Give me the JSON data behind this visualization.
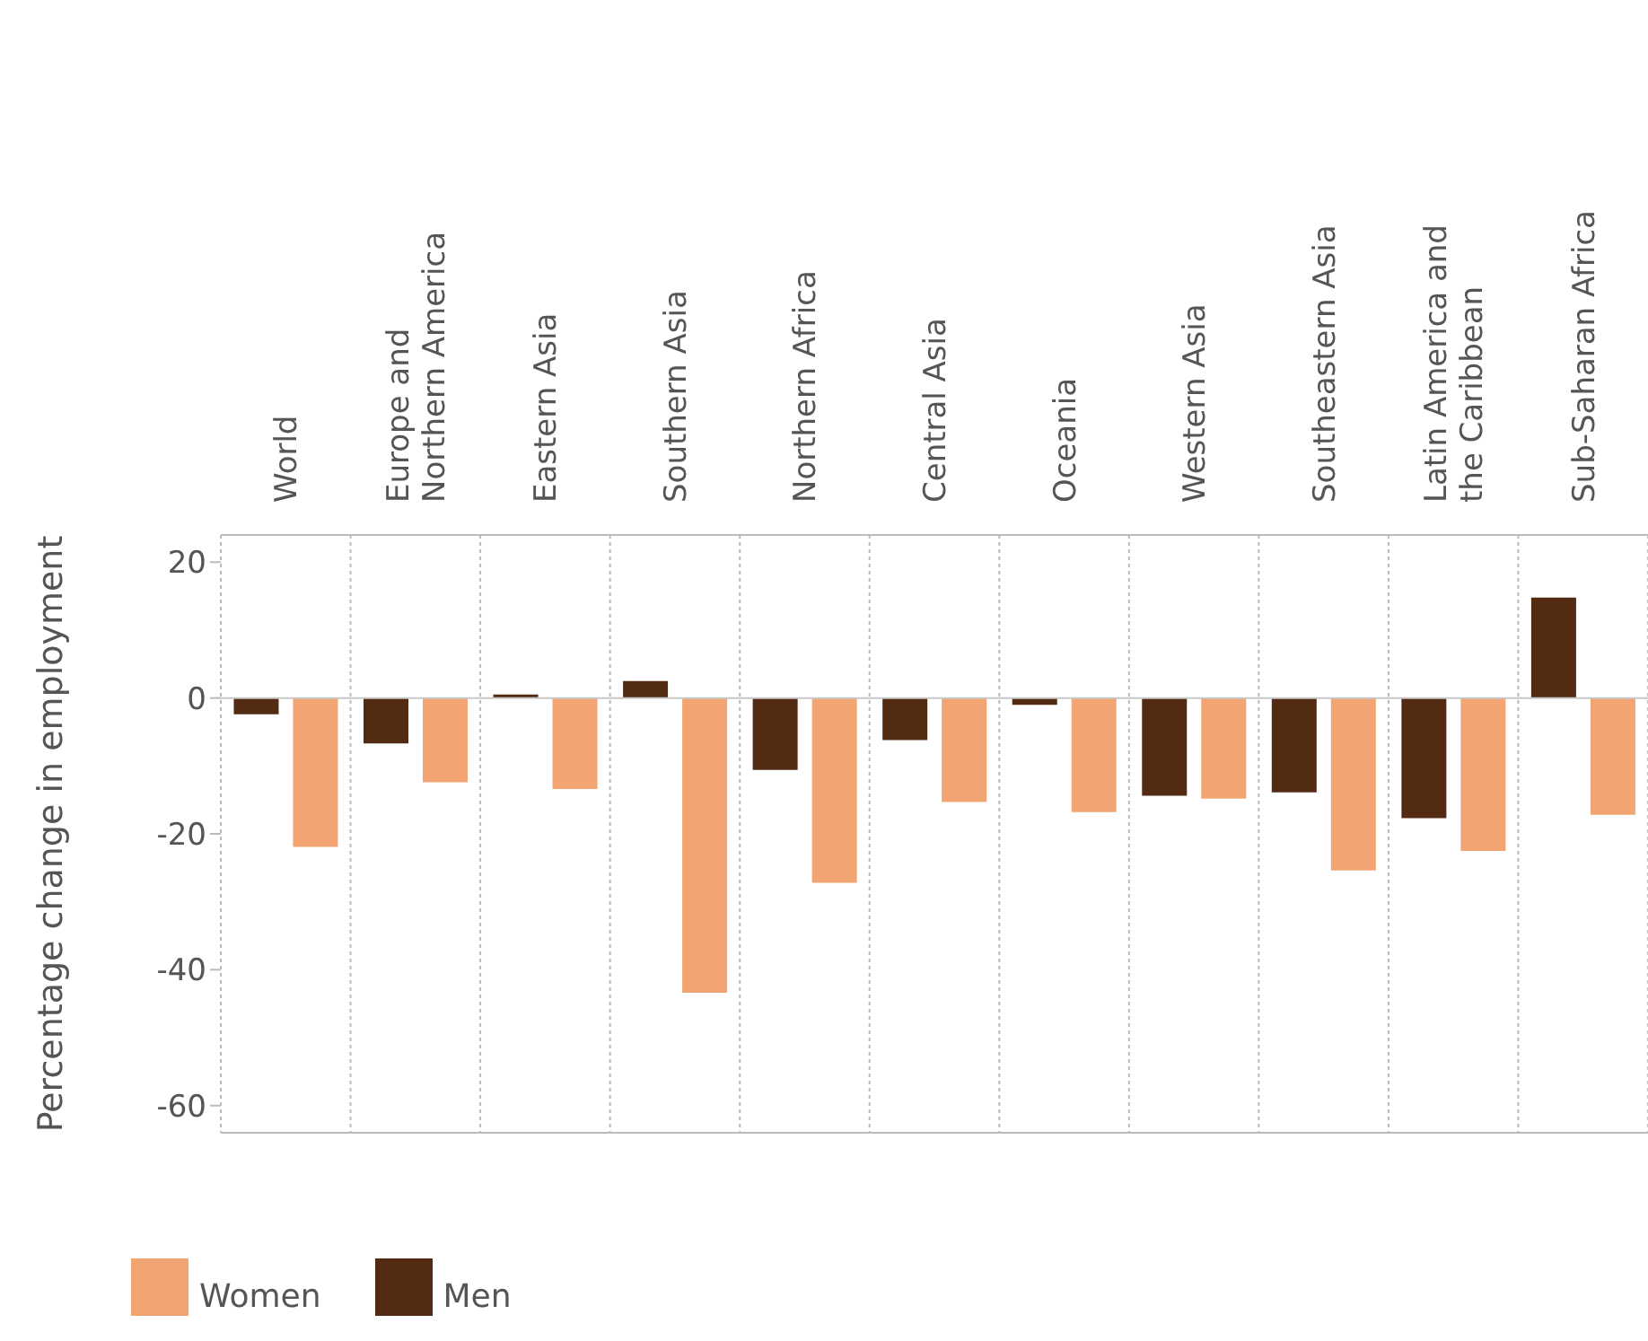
{
  "chart_data": {
    "type": "bar",
    "ylabel": "Percentage change in employment",
    "categories": [
      "World",
      "Europe and Northern America",
      "Eastern Asia",
      "Southern Asia",
      "Northern Africa",
      "Central Asia",
      "Oceania",
      "Western Asia",
      "Southeastern Asia",
      "Latin America and the Caribbean",
      "Sub-Saharan Africa"
    ],
    "series": [
      {
        "name": "Men",
        "color": "#522b12",
        "values": [
          -2.4,
          -6.7,
          0.5,
          2.5,
          -10.6,
          -6.2,
          -1,
          -14.4,
          -13.9,
          -17.7,
          14.8
        ]
      },
      {
        "name": "Women",
        "color": "#f2a472",
        "values": [
          -21.9,
          -12.4,
          -13.4,
          -43.4,
          -27.2,
          -15.3,
          -16.8,
          -14.8,
          -25.4,
          -22.5,
          -17.2
        ]
      }
    ],
    "ylim": [
      -64,
      24
    ],
    "yticks": [
      -60,
      -40,
      -20,
      0,
      20
    ],
    "grid": "x",
    "legend": "bottom left",
    "ref_lines": [
      {
        "axis": "y",
        "value": 0,
        "color": "#c8c8c8"
      }
    ]
  }
}
